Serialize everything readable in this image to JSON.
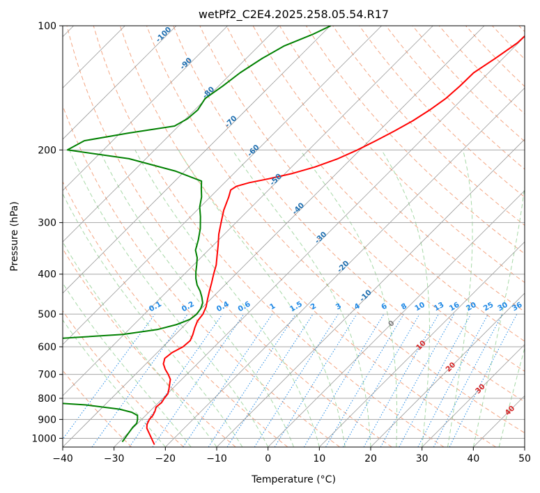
{
  "chart_data": {
    "type": "skew-t",
    "title": "wetPf2_C2E4.2025.258.05.54.R17",
    "xlabel": "Temperature (°C)",
    "ylabel": "Pressure (hPa)",
    "xlim": [
      -40,
      50
    ],
    "ylim": [
      1050,
      100
    ],
    "y_scale": "log",
    "grid": true,
    "x_ticks": [
      -40,
      -30,
      -20,
      -10,
      0,
      10,
      20,
      30,
      40,
      50
    ],
    "x_tick_labels": [
      "−40",
      "−30",
      "−20",
      "−10",
      "0",
      "10",
      "20",
      "30",
      "40",
      "50"
    ],
    "y_ticks": [
      100,
      200,
      300,
      400,
      500,
      600,
      700,
      800,
      900,
      1000
    ],
    "y_tick_labels": [
      "100",
      "200",
      "300",
      "400",
      "500",
      "600",
      "700",
      "800",
      "900",
      "1000"
    ],
    "series": [
      {
        "color": "#ff0000",
        "role": "temperature",
        "points": [
          [
            -22.6,
            1036
          ],
          [
            -23.9,
            1010
          ],
          [
            -25.7,
            975
          ],
          [
            -27.3,
            945
          ],
          [
            -28.0,
            925
          ],
          [
            -28.5,
            900
          ],
          [
            -28.6,
            880
          ],
          [
            -29.0,
            860
          ],
          [
            -29.6,
            840
          ],
          [
            -29.4,
            820
          ],
          [
            -29.7,
            800
          ],
          [
            -29.9,
            780
          ],
          [
            -30.6,
            760
          ],
          [
            -31.4,
            740
          ],
          [
            -32.2,
            720
          ],
          [
            -33.6,
            700
          ],
          [
            -35.2,
            680
          ],
          [
            -36.6,
            660
          ],
          [
            -37.4,
            640
          ],
          [
            -37.1,
            620
          ],
          [
            -36.1,
            600
          ],
          [
            -35.9,
            580
          ],
          [
            -36.6,
            560
          ],
          [
            -37.5,
            540
          ],
          [
            -38.3,
            520
          ],
          [
            -38.6,
            500
          ],
          [
            -39.4,
            480
          ],
          [
            -40.6,
            460
          ],
          [
            -41.8,
            440
          ],
          [
            -43.0,
            420
          ],
          [
            -44.3,
            400
          ],
          [
            -45.6,
            380
          ],
          [
            -47.3,
            360
          ],
          [
            -49.1,
            340
          ],
          [
            -51.1,
            320
          ],
          [
            -52.9,
            300
          ],
          [
            -54.8,
            280
          ],
          [
            -56.4,
            260
          ],
          [
            -57.4,
            250
          ],
          [
            -57.0,
            245
          ],
          [
            -55.2,
            240
          ],
          [
            -52.2,
            235
          ],
          [
            -48.6,
            228
          ],
          [
            -45.5,
            220
          ],
          [
            -42.6,
            210
          ],
          [
            -40.5,
            200
          ],
          [
            -38.7,
            190
          ],
          [
            -37.0,
            180
          ],
          [
            -35.4,
            170
          ],
          [
            -34.2,
            160
          ],
          [
            -33.3,
            150
          ],
          [
            -33.0,
            140
          ],
          [
            -32.9,
            130
          ],
          [
            -31.5,
            120
          ],
          [
            -30.2,
            110
          ],
          [
            -30.1,
            105
          ],
          [
            -29.5,
            100
          ]
        ]
      },
      {
        "color": "#008000",
        "role": "dewpoint",
        "points": [
          [
            -29.4,
            1020
          ],
          [
            -29.6,
            1000
          ],
          [
            -29.8,
            980
          ],
          [
            -30.0,
            960
          ],
          [
            -30.2,
            940
          ],
          [
            -30.2,
            920
          ],
          [
            -30.8,
            900
          ],
          [
            -31.6,
            880
          ],
          [
            -33.3,
            865
          ],
          [
            -36.3,
            850
          ],
          [
            -43.7,
            830
          ],
          [
            -54.1,
            815
          ],
          [
            -67.8,
            800
          ],
          [
            -69.1,
            780
          ],
          [
            -73.2,
            760
          ],
          [
            -75.6,
            750
          ],
          [
            -74.8,
            735
          ],
          [
            -72.2,
            720
          ],
          [
            -70.7,
            700
          ],
          [
            -70.4,
            680
          ],
          [
            -70.4,
            665
          ],
          [
            -70.3,
            650
          ],
          [
            -72.8,
            630
          ],
          [
            -76.5,
            610
          ],
          [
            -77.2,
            600
          ],
          [
            -75.0,
            590
          ],
          [
            -64.0,
            575
          ],
          [
            -50.2,
            560
          ],
          [
            -44.5,
            545
          ],
          [
            -41.7,
            530
          ],
          [
            -40.1,
            515
          ],
          [
            -39.8,
            500
          ],
          [
            -40.1,
            485
          ],
          [
            -40.8,
            470
          ],
          [
            -42.1,
            455
          ],
          [
            -43.6,
            440
          ],
          [
            -45.4,
            425
          ],
          [
            -46.9,
            410
          ],
          [
            -48.2,
            395
          ],
          [
            -49.4,
            380
          ],
          [
            -50.7,
            365
          ],
          [
            -52.5,
            350
          ],
          [
            -54.0,
            330
          ],
          [
            -55.8,
            310
          ],
          [
            -58.1,
            290
          ],
          [
            -60.1,
            275
          ],
          [
            -61.7,
            260
          ],
          [
            -63.4,
            248
          ],
          [
            -64.8,
            238
          ],
          [
            -71.9,
            225
          ],
          [
            -83.3,
            210
          ],
          [
            -97.0,
            200
          ],
          [
            -95.5,
            190
          ],
          [
            -88.4,
            182
          ],
          [
            -80.8,
            175
          ],
          [
            -79.7,
            168
          ],
          [
            -79.4,
            160
          ],
          [
            -80.2,
            150
          ],
          [
            -79.2,
            140
          ],
          [
            -78.4,
            130
          ],
          [
            -76.9,
            120
          ],
          [
            -75.1,
            112
          ],
          [
            -71.8,
            105
          ],
          [
            -69.9,
            100
          ]
        ]
      }
    ],
    "dry_adiabat_labels": [
      "-100",
      "-90",
      "-80",
      "-70",
      "-60",
      "-50",
      "-40",
      "-30",
      "-20",
      "-10"
    ],
    "moist_adiabat_labels": [
      "0",
      "10",
      "20",
      "30",
      "40"
    ],
    "mixing_ratio_labels": [
      "0.1",
      "0.2",
      "0.4",
      "0.6",
      "1",
      "1.5",
      "2",
      "3",
      "4",
      "6",
      "8",
      "10",
      "13",
      "16",
      "20",
      "25",
      "30",
      "36"
    ],
    "colors": {
      "temperature": "#ff0000",
      "dewpoint": "#008000",
      "dry_adiabat": "#f4a582",
      "moist_adiabat": "#a6d8a6",
      "mixing_ratio": "#1e88e5",
      "dry_adiabat_label": "#1f6fb0",
      "moist_adiabat_label": "#d62728",
      "isotherm": "#808080",
      "grid": "#a6a6a6"
    }
  }
}
